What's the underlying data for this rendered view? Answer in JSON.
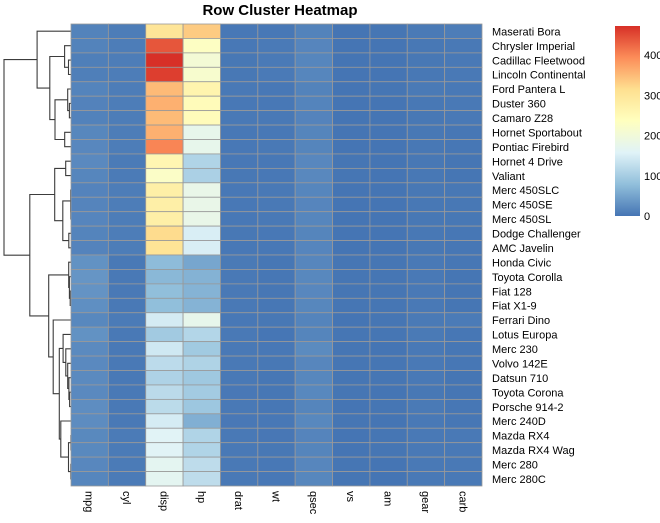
{
  "title": "Row Cluster Heatmap",
  "chart_data": {
    "type": "heatmap",
    "title": "Row Cluster Heatmap",
    "columns": [
      "mpg",
      "cyl",
      "disp",
      "hp",
      "drat",
      "wt",
      "qsec",
      "vs",
      "am",
      "gear",
      "carb"
    ],
    "rows": [
      "Maserati Bora",
      "Chrysler Imperial",
      "Cadillac Fleetwood",
      "Lincoln Continental",
      "Ford Pantera L",
      "Duster 360",
      "Camaro Z28",
      "Hornet Sportabout",
      "Pontiac Firebird",
      "Hornet 4 Drive",
      "Valiant",
      "Merc 450SLC",
      "Merc 450SE",
      "Merc 450SL",
      "Dodge Challenger",
      "AMC Javelin",
      "Honda Civic",
      "Toyota Corolla",
      "Fiat 128",
      "Fiat X1-9",
      "Ferrari Dino",
      "Lotus Europa",
      "Merc 230",
      "Volvo 142E",
      "Datsun 710",
      "Toyota Corona",
      "Porsche 914-2",
      "Merc 240D",
      "Mazda RX4",
      "Mazda RX4 Wag",
      "Merc 280",
      "Merc 280C"
    ],
    "values": [
      [
        15.0,
        8,
        301.0,
        335,
        3.54,
        3.57,
        14.6,
        0,
        1,
        5,
        8
      ],
      [
        14.7,
        8,
        440.0,
        230,
        3.23,
        5.345,
        17.42,
        0,
        0,
        3,
        4
      ],
      [
        10.4,
        8,
        472.0,
        205,
        2.93,
        5.25,
        17.98,
        0,
        0,
        3,
        4
      ],
      [
        10.4,
        8,
        460.0,
        215,
        3.0,
        5.424,
        17.82,
        0,
        0,
        3,
        4
      ],
      [
        15.8,
        8,
        351.0,
        264,
        4.22,
        3.17,
        14.5,
        0,
        1,
        5,
        4
      ],
      [
        14.3,
        8,
        360.0,
        245,
        3.21,
        3.57,
        15.84,
        0,
        0,
        3,
        4
      ],
      [
        13.3,
        8,
        350.0,
        245,
        3.73,
        3.84,
        15.41,
        0,
        0,
        3,
        4
      ],
      [
        18.7,
        8,
        360.0,
        175,
        3.15,
        3.44,
        17.02,
        0,
        0,
        3,
        2
      ],
      [
        19.2,
        8,
        400.0,
        175,
        3.08,
        3.845,
        17.05,
        0,
        0,
        3,
        2
      ],
      [
        21.4,
        6,
        258.0,
        110,
        3.08,
        3.215,
        19.44,
        1,
        0,
        3,
        1
      ],
      [
        18.1,
        6,
        225.0,
        105,
        2.76,
        3.46,
        20.22,
        1,
        0,
        3,
        1
      ],
      [
        15.2,
        8,
        275.8,
        180,
        3.07,
        3.78,
        18.0,
        0,
        0,
        3,
        3
      ],
      [
        16.4,
        8,
        275.8,
        180,
        3.07,
        4.07,
        17.4,
        0,
        0,
        3,
        3
      ],
      [
        17.3,
        8,
        275.8,
        180,
        3.07,
        3.73,
        17.6,
        0,
        0,
        3,
        3
      ],
      [
        15.5,
        8,
        318.0,
        150,
        2.76,
        3.52,
        16.87,
        0,
        0,
        3,
        2
      ],
      [
        15.2,
        8,
        304.0,
        150,
        3.15,
        3.435,
        17.3,
        0,
        0,
        3,
        2
      ],
      [
        30.4,
        4,
        75.7,
        52,
        4.93,
        1.615,
        18.52,
        1,
        1,
        4,
        2
      ],
      [
        33.9,
        4,
        71.1,
        65,
        4.22,
        1.835,
        19.9,
        1,
        1,
        4,
        1
      ],
      [
        32.4,
        4,
        78.7,
        66,
        4.08,
        2.2,
        19.47,
        1,
        1,
        4,
        1
      ],
      [
        27.3,
        4,
        79.0,
        66,
        4.08,
        1.935,
        18.9,
        1,
        1,
        4,
        1
      ],
      [
        19.7,
        6,
        145.0,
        175,
        3.62,
        2.77,
        15.5,
        0,
        1,
        5,
        6
      ],
      [
        30.4,
        4,
        95.1,
        113,
        3.77,
        1.513,
        16.9,
        1,
        1,
        5,
        2
      ],
      [
        22.8,
        4,
        140.8,
        95,
        3.92,
        3.15,
        22.9,
        1,
        0,
        4,
        2
      ],
      [
        21.4,
        4,
        121.0,
        109,
        4.11,
        2.78,
        18.6,
        1,
        1,
        4,
        2
      ],
      [
        22.8,
        4,
        108.0,
        93,
        3.85,
        2.32,
        18.61,
        1,
        1,
        4,
        1
      ],
      [
        21.5,
        4,
        120.1,
        97,
        3.7,
        2.465,
        20.01,
        1,
        0,
        3,
        1
      ],
      [
        26.0,
        4,
        120.3,
        91,
        4.43,
        2.14,
        16.7,
        0,
        1,
        5,
        2
      ],
      [
        24.4,
        4,
        146.7,
        62,
        3.69,
        3.19,
        20.0,
        1,
        0,
        4,
        2
      ],
      [
        21.0,
        6,
        160.0,
        110,
        3.9,
        2.62,
        16.46,
        0,
        1,
        4,
        4
      ],
      [
        21.0,
        6,
        160.0,
        110,
        3.9,
        2.875,
        17.02,
        0,
        1,
        4,
        4
      ],
      [
        19.2,
        6,
        167.6,
        123,
        3.92,
        3.44,
        18.3,
        1,
        0,
        4,
        4
      ],
      [
        17.8,
        6,
        167.6,
        123,
        3.92,
        3.44,
        18.9,
        1,
        0,
        4,
        4
      ]
    ],
    "color_scale": {
      "min": 0,
      "max": 472,
      "palette": [
        "#4575B4",
        "#91BFDB",
        "#E0F3F8",
        "#FFFFBF",
        "#FEE090",
        "#FC8D59",
        "#D73027"
      ],
      "legend_ticks": [
        0,
        100,
        200,
        300,
        400
      ],
      "legend_position": "right"
    },
    "grid_color": "#999999",
    "dendrogram": {
      "rows_shown": true,
      "cols_shown": false,
      "side": "left",
      "method": "complete",
      "distance": "euclidean",
      "line_color": "#3c3c3c"
    }
  }
}
